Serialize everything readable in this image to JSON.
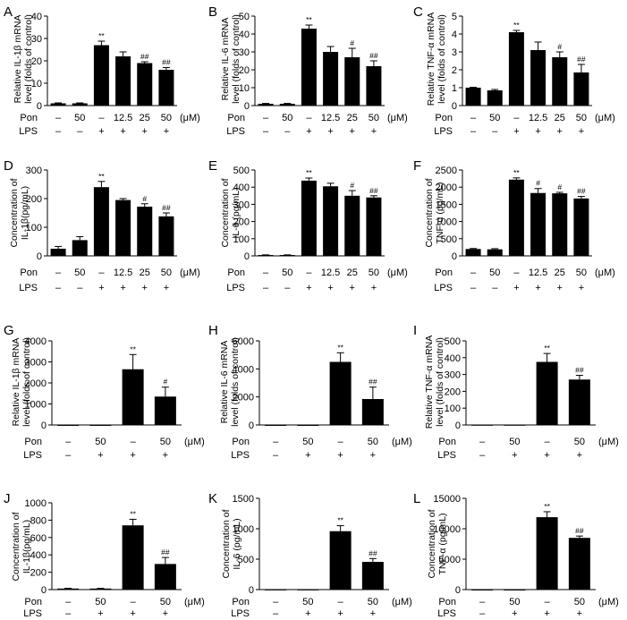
{
  "chart_data": [
    {
      "panel": "A",
      "type": "bar",
      "ylabel": "Relative IL-1β mRNA level (folds of control)",
      "ylim": [
        0,
        40
      ],
      "yticks": [
        0,
        10,
        20,
        30,
        40
      ],
      "treatments": [
        {
          "label": "Pon",
          "values": [
            "–",
            "50",
            "–",
            "12.5",
            "25",
            "50"
          ],
          "unit": "(μM)"
        },
        {
          "label": "LPS",
          "values": [
            "–",
            "–",
            "+",
            "+",
            "+",
            "+"
          ]
        }
      ],
      "values": [
        1,
        1,
        27,
        22,
        19,
        16
      ],
      "errors": [
        0.2,
        0.2,
        1.8,
        2,
        0.6,
        1
      ],
      "significance": [
        "",
        "",
        "**",
        "",
        "##",
        "##"
      ]
    },
    {
      "panel": "B",
      "type": "bar",
      "ylabel": "Relative IL-6 mRNA level (folds of control)",
      "ylim": [
        0,
        50
      ],
      "yticks": [
        0,
        10,
        20,
        30,
        40,
        50
      ],
      "treatments": [
        {
          "label": "Pon",
          "values": [
            "–",
            "50",
            "–",
            "12.5",
            "25",
            "50"
          ],
          "unit": "(μM)"
        },
        {
          "label": "LPS",
          "values": [
            "–",
            "–",
            "+",
            "+",
            "+",
            "+"
          ]
        }
      ],
      "values": [
        1,
        1,
        43,
        30,
        27,
        22
      ],
      "errors": [
        0.2,
        0.2,
        2,
        3,
        5,
        3
      ],
      "significance": [
        "",
        "",
        "**",
        "",
        "#",
        "##"
      ]
    },
    {
      "panel": "C",
      "type": "bar",
      "ylabel": "Relative TNF-α mRNA level (folds of control)",
      "ylim": [
        0,
        5
      ],
      "yticks": [
        0,
        1,
        2,
        3,
        4,
        5
      ],
      "treatments": [
        {
          "label": "Pon",
          "values": [
            "–",
            "50",
            "–",
            "12.5",
            "25",
            "50"
          ],
          "unit": "(μM)"
        },
        {
          "label": "LPS",
          "values": [
            "–",
            "–",
            "+",
            "+",
            "+",
            "+"
          ]
        }
      ],
      "values": [
        1,
        0.85,
        4.1,
        3.1,
        2.7,
        1.85
      ],
      "errors": [
        0.02,
        0.05,
        0.1,
        0.45,
        0.3,
        0.45
      ],
      "significance": [
        "",
        "",
        "**",
        "",
        "#",
        "##"
      ]
    },
    {
      "panel": "D",
      "type": "bar",
      "ylabel": "Concentration of IL-1β(pg/mL)",
      "ylim": [
        0,
        300
      ],
      "yticks": [
        0,
        100,
        200,
        300
      ],
      "treatments": [
        {
          "label": "Pon",
          "values": [
            "–",
            "50",
            "–",
            "12.5",
            "25",
            "50"
          ],
          "unit": "(μM)"
        },
        {
          "label": "LPS",
          "values": [
            "–",
            "–",
            "+",
            "+",
            "+",
            "+"
          ]
        }
      ],
      "values": [
        25,
        55,
        240,
        195,
        172,
        138
      ],
      "errors": [
        8,
        12,
        20,
        5,
        10,
        12
      ],
      "significance": [
        "",
        "",
        "**",
        "",
        "#",
        "##"
      ]
    },
    {
      "panel": "E",
      "type": "bar",
      "ylabel": "Concentration of IL-6 (pg/mL)",
      "ylim": [
        0,
        500
      ],
      "yticks": [
        0,
        100,
        200,
        300,
        400,
        500
      ],
      "treatments": [
        {
          "label": "Pon",
          "values": [
            "–",
            "50",
            "–",
            "12.5",
            "25",
            "50"
          ],
          "unit": "(μM)"
        },
        {
          "label": "LPS",
          "values": [
            "–",
            "–",
            "+",
            "+",
            "+",
            "+"
          ]
        }
      ],
      "values": [
        5,
        5,
        438,
        405,
        350,
        340
      ],
      "errors": [
        1,
        1,
        15,
        18,
        30,
        10
      ],
      "significance": [
        "",
        "",
        "**",
        "",
        "#",
        "##"
      ]
    },
    {
      "panel": "F",
      "type": "bar",
      "ylabel": "Concentration of TNF-α (pg/mL)",
      "ylim": [
        0,
        2500
      ],
      "yticks": [
        0,
        500,
        1000,
        1500,
        2000,
        2500
      ],
      "treatments": [
        {
          "label": "Pon",
          "values": [
            "–",
            "50",
            "–",
            "12.5",
            "25",
            "50"
          ],
          "unit": "(μM)"
        },
        {
          "label": "LPS",
          "values": [
            "–",
            "–",
            "+",
            "+",
            "+",
            "+"
          ]
        }
      ],
      "values": [
        200,
        190,
        2220,
        1830,
        1820,
        1670
      ],
      "errors": [
        15,
        20,
        50,
        130,
        30,
        60
      ],
      "significance": [
        "",
        "",
        "**",
        "#",
        "#",
        "##"
      ]
    },
    {
      "panel": "G",
      "type": "bar",
      "ylabel": "Relative IL-1β mRNA level (folds of control)",
      "ylim": [
        0,
        4000
      ],
      "yticks": [
        0,
        1000,
        2000,
        3000,
        4000
      ],
      "treatments": [
        {
          "label": "Pon",
          "values": [
            "–",
            "50",
            "–",
            "50"
          ],
          "unit": "(μM)"
        },
        {
          "label": "LPS",
          "values": [
            "–",
            "+",
            "+",
            "+"
          ]
        }
      ],
      "values": [
        1,
        1,
        2650,
        1350
      ],
      "errors": [
        0,
        0,
        700,
        450
      ],
      "significance": [
        "",
        "",
        "**",
        "#"
      ]
    },
    {
      "panel": "H",
      "type": "bar",
      "ylabel": "Relative IL-6 mRNA level (folds of control)",
      "ylim": [
        0,
        6000
      ],
      "yticks": [
        0,
        2000,
        4000,
        6000
      ],
      "treatments": [
        {
          "label": "Pon",
          "values": [
            "–",
            "50",
            "–",
            "50"
          ],
          "unit": "(μM)"
        },
        {
          "label": "LPS",
          "values": [
            "–",
            "+",
            "+",
            "+"
          ]
        }
      ],
      "values": [
        1,
        1,
        4500,
        1850
      ],
      "errors": [
        0,
        0,
        650,
        850
      ],
      "significance": [
        "",
        "",
        "**",
        "##"
      ]
    },
    {
      "panel": "I",
      "type": "bar",
      "ylabel": "Relative TNF-α mRNA level (folds of control)",
      "ylim": [
        0,
        500
      ],
      "yticks": [
        0,
        100,
        200,
        300,
        400,
        500
      ],
      "treatments": [
        {
          "label": "Pon",
          "values": [
            "–",
            "50",
            "–",
            "50"
          ],
          "unit": "(μM)"
        },
        {
          "label": "LPS",
          "values": [
            "–",
            "+",
            "+",
            "+"
          ]
        }
      ],
      "values": [
        1,
        1,
        375,
        270
      ],
      "errors": [
        0,
        0,
        50,
        25
      ],
      "significance": [
        "",
        "",
        "**",
        "##"
      ]
    },
    {
      "panel": "J",
      "type": "bar",
      "ylabel": "Concentration of IL-1β(pg/mL)",
      "ylim": [
        0,
        1000
      ],
      "yticks": [
        0,
        200,
        400,
        600,
        800,
        1000
      ],
      "treatments": [
        {
          "label": "Pon",
          "values": [
            "–",
            "50",
            "–",
            "50"
          ],
          "unit": "(μM)"
        },
        {
          "label": "LPS",
          "values": [
            "–",
            "+",
            "+",
            "+"
          ]
        }
      ],
      "values": [
        12,
        12,
        740,
        295
      ],
      "errors": [
        3,
        3,
        70,
        75
      ],
      "significance": [
        "",
        "",
        "**",
        "##"
      ]
    },
    {
      "panel": "K",
      "type": "bar",
      "ylabel": "Concentration of IL-6 (pg/mL)",
      "ylim": [
        0,
        1500
      ],
      "yticks": [
        0,
        500,
        1000,
        1500
      ],
      "treatments": [
        {
          "label": "Pon",
          "values": [
            "–",
            "50",
            "–",
            "50"
          ],
          "unit": "(μM)"
        },
        {
          "label": "LPS",
          "values": [
            "–",
            "+",
            "+",
            "+"
          ]
        }
      ],
      "values": [
        2,
        2,
        960,
        455
      ],
      "errors": [
        0,
        0,
        90,
        55
      ],
      "significance": [
        "",
        "",
        "**",
        "##"
      ]
    },
    {
      "panel": "L",
      "type": "bar",
      "ylabel": "Concentration of TNF-α (pg/mL)",
      "ylim": [
        0,
        15000
      ],
      "yticks": [
        0,
        5000,
        10000,
        15000
      ],
      "treatments": [
        {
          "label": "Pon",
          "values": [
            "–",
            "50",
            "–",
            "50"
          ],
          "unit": "(μM)"
        },
        {
          "label": "LPS",
          "values": [
            "–",
            "+",
            "+",
            "+"
          ]
        }
      ],
      "values": [
        5,
        5,
        11900,
        8500
      ],
      "errors": [
        0,
        0,
        900,
        300
      ],
      "significance": [
        "",
        "",
        "**",
        "##"
      ]
    }
  ]
}
